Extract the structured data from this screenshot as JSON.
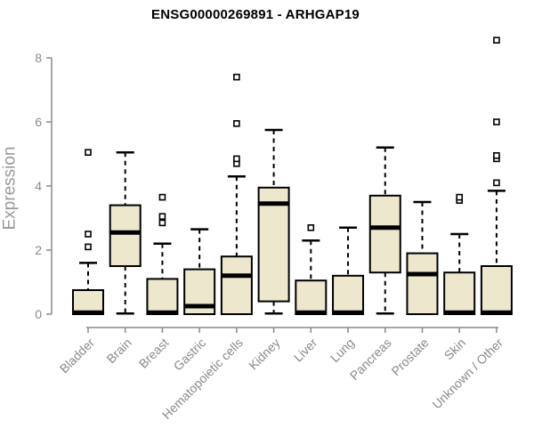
{
  "figure": {
    "background": "#ffffff"
  },
  "colors": {
    "box_fill": "#EDE7CE",
    "box_border": "#000000",
    "median": "#000000",
    "whisker": "#000000",
    "outlier_stroke": "#000000",
    "outlier_fill": "#ffffff",
    "axis_line": "#8a8a8a",
    "tick_label": "#8a8a8a",
    "axis_title": "#9a9a9a",
    "title": "#000000"
  },
  "chart_data": {
    "type": "box",
    "title": "ENSG00000269891 - ARHGAP19",
    "xlabel": "",
    "ylabel": "Expression",
    "ylim": [
      0,
      8.6
    ],
    "yticks": [
      0,
      2,
      4,
      6,
      8
    ],
    "grid": false,
    "legend": "none",
    "categories": [
      "Bladder",
      "Brain",
      "Breast",
      "Gastric",
      "Hematopoietic cells",
      "Kidney",
      "Liver",
      "Lung",
      "Pancreas",
      "Prostate",
      "Skin",
      "Unknown / Other"
    ],
    "boxes": [
      {
        "category": "Bladder",
        "whisker_low": 0,
        "q1": 0,
        "median": 0.05,
        "q3": 0.75,
        "whisker_high": 1.6,
        "outliers": [
          2.1,
          2.5,
          5.05
        ]
      },
      {
        "category": "Brain",
        "whisker_low": 0.02,
        "q1": 1.5,
        "median": 2.55,
        "q3": 3.4,
        "whisker_high": 5.05,
        "outliers": []
      },
      {
        "category": "Breast",
        "whisker_low": 0,
        "q1": 0,
        "median": 0.05,
        "q3": 1.1,
        "whisker_high": 2.2,
        "outliers": [
          2.85,
          3.05,
          3.65
        ]
      },
      {
        "category": "Gastric",
        "whisker_low": 0,
        "q1": 0,
        "median": 0.25,
        "q3": 1.4,
        "whisker_high": 2.65,
        "outliers": []
      },
      {
        "category": "Hematopoietic cells",
        "whisker_low": 0,
        "q1": 0,
        "median": 1.2,
        "q3": 1.8,
        "whisker_high": 4.3,
        "outliers": [
          4.7,
          4.85,
          5.95,
          7.4
        ]
      },
      {
        "category": "Kidney",
        "whisker_low": 0.02,
        "q1": 0.4,
        "median": 3.45,
        "q3": 3.95,
        "whisker_high": 5.75,
        "outliers": []
      },
      {
        "category": "Liver",
        "whisker_low": 0,
        "q1": 0,
        "median": 0.05,
        "q3": 1.05,
        "whisker_high": 2.3,
        "outliers": [
          2.7
        ]
      },
      {
        "category": "Lung",
        "whisker_low": 0,
        "q1": 0,
        "median": 0.05,
        "q3": 1.2,
        "whisker_high": 2.7,
        "outliers": []
      },
      {
        "category": "Pancreas",
        "whisker_low": 0.02,
        "q1": 1.3,
        "median": 2.7,
        "q3": 3.7,
        "whisker_high": 5.2,
        "outliers": []
      },
      {
        "category": "Prostate",
        "whisker_low": 0,
        "q1": 0,
        "median": 1.25,
        "q3": 1.9,
        "whisker_high": 3.5,
        "outliers": []
      },
      {
        "category": "Skin",
        "whisker_low": 0,
        "q1": 0,
        "median": 0.05,
        "q3": 1.3,
        "whisker_high": 2.5,
        "outliers": [
          3.55,
          3.65
        ]
      },
      {
        "category": "Unknown / Other",
        "whisker_low": 0,
        "q1": 0,
        "median": 0.05,
        "q3": 1.5,
        "whisker_high": 3.85,
        "outliers": [
          4.1,
          4.85,
          4.95,
          6.0,
          8.55
        ]
      }
    ]
  }
}
